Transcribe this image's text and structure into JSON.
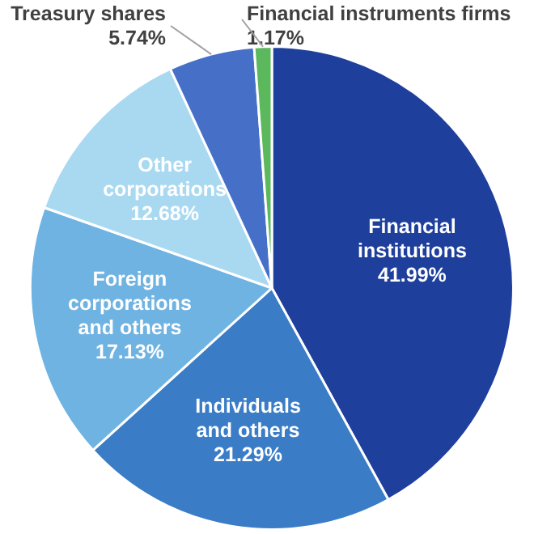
{
  "chart_data": {
    "type": "pie",
    "categories": [
      "Financial institutions",
      "Individuals and others",
      "Foreign corporations and others",
      "Other corporations",
      "Treasury shares",
      "Financial instruments firms"
    ],
    "values": [
      41.99,
      21.29,
      17.13,
      12.68,
      5.74,
      1.17
    ],
    "colors": [
      "#1f3f9c",
      "#3a7cc6",
      "#6fb3e2",
      "#a9d9f1",
      "#4670c8",
      "#5cb85c"
    ],
    "value_labels": [
      "41.99%",
      "21.29%",
      "17.13%",
      "12.68%",
      "5.74%",
      "1.17%"
    ]
  }
}
